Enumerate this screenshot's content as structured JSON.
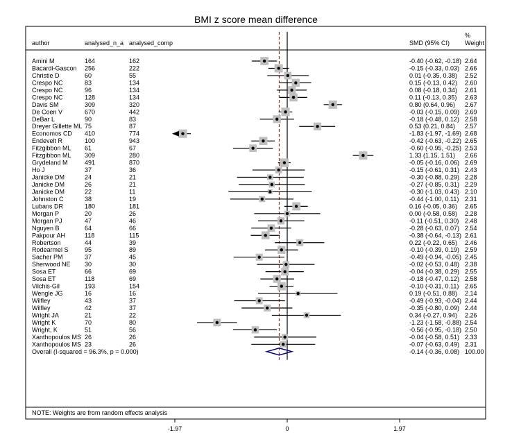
{
  "chart_data": {
    "type": "forest",
    "title": "BMI z score mean  difference",
    "columns": {
      "author": "author",
      "n_a": "analysed_n_a",
      "comp": "analysed_comp",
      "smd": "SMD (95% CI)",
      "weight_top": "%",
      "weight_bottom": "Weight"
    },
    "x_ticks": [
      {
        "value": -1.97,
        "label": "-1.97"
      },
      {
        "value": 0,
        "label": "0"
      },
      {
        "value": 1.97,
        "label": "1.97"
      }
    ],
    "xlim": [
      -1.97,
      1.97
    ],
    "null_line": 0,
    "overall_line": -0.14,
    "studies": [
      {
        "author": "Amini M",
        "n_a": "164",
        "comp": "162",
        "smd": -0.4,
        "lo": -0.62,
        "hi": -0.18,
        "ci_text": "-0.40 (-0.62, -0.18)",
        "weight": "2.64"
      },
      {
        "author": "Bacardi-Gascon",
        "n_a": "256",
        "comp": "222",
        "smd": -0.15,
        "lo": -0.33,
        "hi": 0.03,
        "ci_text": "-0.15 (-0.33, 0.03)",
        "weight": "2.66"
      },
      {
        "author": "Christie D",
        "n_a": "60",
        "comp": "55",
        "smd": 0.01,
        "lo": -0.35,
        "hi": 0.38,
        "ci_text": "0.01 (-0.35, 0.38)",
        "weight": "2.52"
      },
      {
        "author": "Crespo NC",
        "n_a": "83",
        "comp": "134",
        "smd": 0.15,
        "lo": -0.13,
        "hi": 0.42,
        "ci_text": "0.15 (-0.13, 0.42)",
        "weight": "2.60"
      },
      {
        "author": "Crespo NC",
        "n_a": "96",
        "comp": "134",
        "smd": 0.08,
        "lo": -0.18,
        "hi": 0.34,
        "ci_text": "0.08 (-0.18, 0.34)",
        "weight": "2.61"
      },
      {
        "author": "Crespo NC",
        "n_a": "128",
        "comp": "134",
        "smd": 0.11,
        "lo": -0.13,
        "hi": 0.35,
        "ci_text": "0.11 (-0.13, 0.35)",
        "weight": "2.63"
      },
      {
        "author": "Davis SM",
        "n_a": "309",
        "comp": "320",
        "smd": 0.8,
        "lo": 0.64,
        "hi": 0.96,
        "ci_text": "0.80 (0.64, 0.96)",
        "weight": "2.67"
      },
      {
        "author": "De Coen V",
        "n_a": "670",
        "comp": "442",
        "smd": -0.03,
        "lo": -0.15,
        "hi": 0.09,
        "ci_text": "-0.03 (-0.15, 0.09)",
        "weight": "2.69"
      },
      {
        "author": "DeBar L",
        "n_a": "90",
        "comp": "83",
        "smd": -0.18,
        "lo": -0.48,
        "hi": 0.12,
        "ci_text": "-0.18 (-0.48, 0.12)",
        "weight": "2.58"
      },
      {
        "author": "Dreyer Gillette ML",
        "n_a": "75",
        "comp": "87",
        "smd": 0.53,
        "lo": 0.21,
        "hi": 0.84,
        "ci_text": "0.53 (0.21, 0.84)",
        "weight": "2.57"
      },
      {
        "author": "Economos CD",
        "n_a": "410",
        "comp": "774",
        "smd": -1.83,
        "lo": -1.97,
        "hi": -1.69,
        "ci_text": "-1.83 (-1.97, -1.69)",
        "weight": "2.68"
      },
      {
        "author": "Endevelt R",
        "n_a": "100",
        "comp": "943",
        "smd": -0.42,
        "lo": -0.63,
        "hi": -0.22,
        "ci_text": "-0.42 (-0.63, -0.22)",
        "weight": "2.65"
      },
      {
        "author": "Fitzgibbon ML",
        "n_a": "61",
        "comp": "67",
        "smd": -0.6,
        "lo": -0.95,
        "hi": -0.25,
        "ci_text": "-0.60 (-0.95, -0.25)",
        "weight": "2.53"
      },
      {
        "author": "Fitzgibbon ML",
        "n_a": "309",
        "comp": "280",
        "smd": 1.33,
        "lo": 1.15,
        "hi": 1.51,
        "ci_text": "1.33 (1.15, 1.51)",
        "weight": "2.66"
      },
      {
        "author": "Grydeland M",
        "n_a": "491",
        "comp": "870",
        "smd": -0.05,
        "lo": -0.16,
        "hi": 0.06,
        "ci_text": "-0.05 (-0.16, 0.06)",
        "weight": "2.69"
      },
      {
        "author": "Ho J",
        "n_a": "37",
        "comp": "36",
        "smd": -0.15,
        "lo": -0.61,
        "hi": 0.31,
        "ci_text": "-0.15 (-0.61, 0.31)",
        "weight": "2.43"
      },
      {
        "author": "Janicke DM",
        "n_a": "24",
        "comp": "21",
        "smd": -0.3,
        "lo": -0.88,
        "hi": 0.29,
        "ci_text": "-0.30 (-0.88, 0.29)",
        "weight": "2.28"
      },
      {
        "author": "Janicke DM",
        "n_a": "26",
        "comp": "21",
        "smd": -0.27,
        "lo": -0.85,
        "hi": 0.31,
        "ci_text": "-0.27 (-0.85, 0.31)",
        "weight": "2.29"
      },
      {
        "author": "Janicke DM",
        "n_a": "22",
        "comp": "11",
        "smd": -0.3,
        "lo": -1.03,
        "hi": 0.43,
        "ci_text": "-0.30 (-1.03, 0.43)",
        "weight": "2.10"
      },
      {
        "author": "Johnston C",
        "n_a": "38",
        "comp": "19",
        "smd": -0.44,
        "lo": -1.0,
        "hi": 0.11,
        "ci_text": "-0.44 (-1.00, 0.11)",
        "weight": "2.31"
      },
      {
        "author": "Lubans DR",
        "n_a": "180",
        "comp": "181",
        "smd": 0.16,
        "lo": -0.05,
        "hi": 0.36,
        "ci_text": "0.16 (-0.05, 0.36)",
        "weight": "2.65"
      },
      {
        "author": "Morgan P",
        "n_a": "20",
        "comp": "26",
        "smd": 0.0,
        "lo": -0.58,
        "hi": 0.58,
        "ci_text": "0.00 (-0.58, 0.58)",
        "weight": "2.28"
      },
      {
        "author": "Morgan PJ",
        "n_a": "47",
        "comp": "46",
        "smd": -0.11,
        "lo": -0.51,
        "hi": 0.3,
        "ci_text": "-0.11 (-0.51, 0.30)",
        "weight": "2.48"
      },
      {
        "author": "Nguyen B",
        "n_a": "64",
        "comp": "66",
        "smd": -0.28,
        "lo": -0.63,
        "hi": 0.07,
        "ci_text": "-0.28 (-0.63, 0.07)",
        "weight": "2.54"
      },
      {
        "author": "Pakpour AH",
        "n_a": "118",
        "comp": "115",
        "smd": -0.38,
        "lo": -0.64,
        "hi": -0.13,
        "ci_text": "-0.38 (-0.64, -0.13)",
        "weight": "2.61"
      },
      {
        "author": "Robertson",
        "n_a": "44",
        "comp": "39",
        "smd": 0.22,
        "lo": -0.22,
        "hi": 0.65,
        "ci_text": "0.22 (-0.22, 0.65)",
        "weight": "2.46"
      },
      {
        "author": "Rodearmel  S",
        "n_a": "95",
        "comp": "89",
        "smd": -0.1,
        "lo": -0.39,
        "hi": 0.19,
        "ci_text": "-0.10 (-0.39, 0.19)",
        "weight": "2.59"
      },
      {
        "author": "Sacher PM",
        "n_a": "37",
        "comp": "45",
        "smd": -0.49,
        "lo": -0.94,
        "hi": -0.05,
        "ci_text": "-0.49 (-0.94, -0.05)",
        "weight": "2.45"
      },
      {
        "author": "Sherwood NE",
        "n_a": "30",
        "comp": "30",
        "smd": -0.02,
        "lo": -0.53,
        "hi": 0.48,
        "ci_text": "-0.02 (-0.53, 0.48)",
        "weight": "2.38"
      },
      {
        "author": "Sosa ET",
        "n_a": "66",
        "comp": "69",
        "smd": -0.04,
        "lo": -0.38,
        "hi": 0.29,
        "ci_text": "-0.04 (-0.38, 0.29)",
        "weight": "2.55"
      },
      {
        "author": "Sosa ET",
        "n_a": "118",
        "comp": "69",
        "smd": -0.18,
        "lo": -0.47,
        "hi": 0.12,
        "ci_text": "-0.18 (-0.47, 0.12)",
        "weight": "2.58"
      },
      {
        "author": "Vilchis-Gil",
        "n_a": "193",
        "comp": "154",
        "smd": -0.1,
        "lo": -0.31,
        "hi": 0.11,
        "ci_text": "-0.10 (-0.31, 0.11)",
        "weight": "2.65"
      },
      {
        "author": "Wengle JG",
        "n_a": "16",
        "comp": "16",
        "smd": 0.19,
        "lo": -0.51,
        "hi": 0.88,
        "ci_text": "0.19 (-0.51, 0.88)",
        "weight": "2.14"
      },
      {
        "author": "Wilfley",
        "n_a": "43",
        "comp": "37",
        "smd": -0.49,
        "lo": -0.93,
        "hi": -0.04,
        "ci_text": "-0.49 (-0.93, -0.04)",
        "weight": "2.44"
      },
      {
        "author": "Wilfley",
        "n_a": "42",
        "comp": "37",
        "smd": -0.35,
        "lo": -0.8,
        "hi": 0.09,
        "ci_text": "-0.35 (-0.80, 0.09)",
        "weight": "2.44"
      },
      {
        "author": "Wright JA",
        "n_a": "21",
        "comp": "22",
        "smd": 0.34,
        "lo": -0.27,
        "hi": 0.94,
        "ci_text": "0.34 (-0.27, 0.94)",
        "weight": "2.26"
      },
      {
        "author": "Wright K",
        "n_a": "70",
        "comp": "80",
        "smd": -1.23,
        "lo": -1.58,
        "hi": -0.88,
        "ci_text": "-1.23 (-1.58, -0.88)",
        "weight": "2.54"
      },
      {
        "author": "Wright, K",
        "n_a": "51",
        "comp": "56",
        "smd": -0.56,
        "lo": -0.95,
        "hi": -0.18,
        "ci_text": "-0.56 (-0.95, -0.18)",
        "weight": "2.50"
      },
      {
        "author": "Xanthopoulos MS",
        "n_a": "26",
        "comp": "26",
        "smd": -0.04,
        "lo": -0.58,
        "hi": 0.51,
        "ci_text": "-0.04 (-0.58, 0.51)",
        "weight": "2.33"
      },
      {
        "author": "Xanthopoulos MS",
        "n_a": "23",
        "comp": "26",
        "smd": -0.07,
        "lo": -0.63,
        "hi": 0.49,
        "ci_text": "-0.07 (-0.63, 0.49)",
        "weight": "2.31"
      }
    ],
    "overall": {
      "label": "Overall  (I-squared = 96.3%, p = 0.000)",
      "smd": -0.14,
      "lo": -0.36,
      "hi": 0.08,
      "ci_text": "-0.14 (-0.36, 0.08)",
      "weight": "100.00"
    },
    "note": "NOTE: Weights are from random effects analysis"
  },
  "colors": {
    "marker_box": "#bfbfbf",
    "marker_dot": "#000000",
    "null_line": "#000000",
    "overall_line": "#8b2a2a",
    "diamond": "#000080",
    "frame": "#000000"
  }
}
